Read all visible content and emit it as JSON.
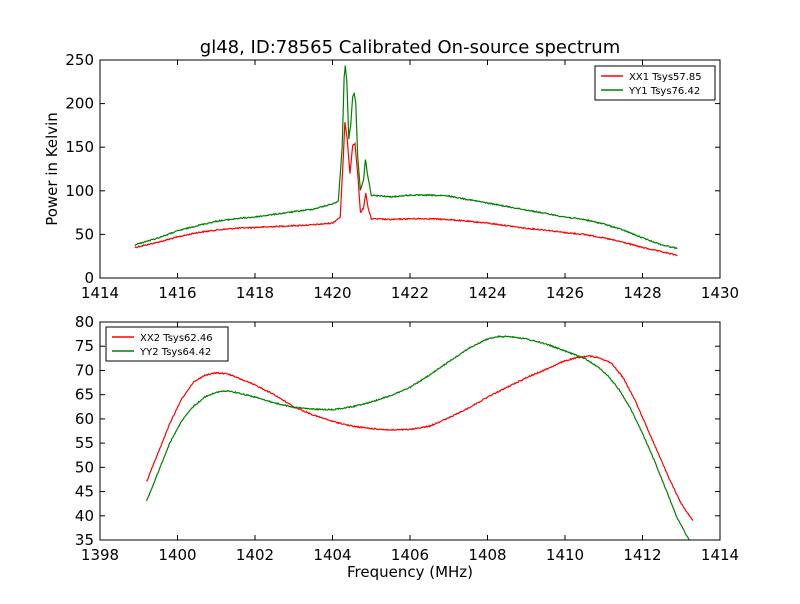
{
  "chart_data": [
    {
      "type": "line",
      "title": "gl48, ID:78565 Calibrated On-source spectrum",
      "xlabel": "",
      "ylabel": "Power in Kelvin",
      "xlim": [
        1414,
        1430
      ],
      "ylim": [
        0,
        250
      ],
      "xticks": [
        1414,
        1416,
        1418,
        1420,
        1422,
        1424,
        1426,
        1428,
        1430
      ],
      "yticks": [
        0,
        50,
        100,
        150,
        200,
        250
      ],
      "grid": false,
      "legend_position": "upper right",
      "series": [
        {
          "name": "XX1 Tsys57.85",
          "color": "#ff0000",
          "points": [
            [
              1414.9,
              35
            ],
            [
              1415.5,
              41
            ],
            [
              1416.0,
              47
            ],
            [
              1416.5,
              52
            ],
            [
              1417.0,
              55
            ],
            [
              1417.5,
              57
            ],
            [
              1418.0,
              58
            ],
            [
              1418.5,
              59
            ],
            [
              1419.0,
              60
            ],
            [
              1419.5,
              61
            ],
            [
              1420.0,
              63
            ],
            [
              1420.2,
              70
            ],
            [
              1420.28,
              140
            ],
            [
              1420.32,
              178
            ],
            [
              1420.38,
              160
            ],
            [
              1420.45,
              120
            ],
            [
              1420.52,
              152
            ],
            [
              1420.58,
              154
            ],
            [
              1420.65,
              120
            ],
            [
              1420.72,
              75
            ],
            [
              1420.8,
              80
            ],
            [
              1420.86,
              98
            ],
            [
              1420.92,
              80
            ],
            [
              1421.0,
              68
            ],
            [
              1421.5,
              67
            ],
            [
              1422.0,
              68
            ],
            [
              1422.5,
              68
            ],
            [
              1423.0,
              67
            ],
            [
              1423.5,
              65
            ],
            [
              1424.0,
              63
            ],
            [
              1424.5,
              60
            ],
            [
              1425.0,
              57
            ],
            [
              1425.5,
              55
            ],
            [
              1426.0,
              52
            ],
            [
              1426.5,
              50
            ],
            [
              1427.0,
              46
            ],
            [
              1427.5,
              41
            ],
            [
              1428.0,
              35
            ],
            [
              1428.5,
              30
            ],
            [
              1428.9,
              26
            ]
          ]
        },
        {
          "name": "YY1 Tsys76.42",
          "color": "#008000",
          "points": [
            [
              1414.9,
              38
            ],
            [
              1415.5,
              46
            ],
            [
              1416.0,
              54
            ],
            [
              1416.5,
              60
            ],
            [
              1417.0,
              65
            ],
            [
              1417.5,
              68
            ],
            [
              1418.0,
              70
            ],
            [
              1418.5,
              73
            ],
            [
              1419.0,
              76
            ],
            [
              1419.5,
              79
            ],
            [
              1420.0,
              85
            ],
            [
              1420.15,
              88
            ],
            [
              1420.25,
              150
            ],
            [
              1420.3,
              230
            ],
            [
              1420.33,
              244
            ],
            [
              1420.37,
              225
            ],
            [
              1420.42,
              160
            ],
            [
              1420.47,
              175
            ],
            [
              1420.52,
              208
            ],
            [
              1420.56,
              212
            ],
            [
              1420.6,
              200
            ],
            [
              1420.65,
              140
            ],
            [
              1420.72,
              100
            ],
            [
              1420.8,
              112
            ],
            [
              1420.85,
              136
            ],
            [
              1420.9,
              120
            ],
            [
              1421.0,
              95
            ],
            [
              1421.5,
              93
            ],
            [
              1422.0,
              95
            ],
            [
              1422.5,
              95
            ],
            [
              1423.0,
              94
            ],
            [
              1423.5,
              90
            ],
            [
              1424.0,
              86
            ],
            [
              1424.5,
              82
            ],
            [
              1425.0,
              78
            ],
            [
              1425.5,
              74
            ],
            [
              1426.0,
              70
            ],
            [
              1426.5,
              67
            ],
            [
              1427.0,
              62
            ],
            [
              1427.5,
              55
            ],
            [
              1428.0,
              46
            ],
            [
              1428.5,
              38
            ],
            [
              1428.9,
              34
            ]
          ]
        }
      ]
    },
    {
      "type": "line",
      "title": "",
      "xlabel": "Frequency (MHz)",
      "ylabel": "",
      "xlim": [
        1398,
        1414
      ],
      "ylim": [
        35,
        80
      ],
      "xticks": [
        1398,
        1400,
        1402,
        1404,
        1406,
        1408,
        1410,
        1412,
        1414
      ],
      "yticks": [
        35,
        40,
        45,
        50,
        55,
        60,
        65,
        70,
        75,
        80
      ],
      "grid": false,
      "legend_position": "upper left",
      "series": [
        {
          "name": "XX2 Tsys62.46",
          "color": "#ff0000",
          "points": [
            [
              1399.2,
              47
            ],
            [
              1399.5,
              53
            ],
            [
              1399.8,
              59
            ],
            [
              1400.1,
              64
            ],
            [
              1400.4,
              67.5
            ],
            [
              1400.7,
              69
            ],
            [
              1401.0,
              69.5
            ],
            [
              1401.3,
              69.3
            ],
            [
              1401.6,
              68.3
            ],
            [
              1402.0,
              67
            ],
            [
              1402.5,
              65
            ],
            [
              1403.0,
              62.5
            ],
            [
              1403.5,
              60.8
            ],
            [
              1404.0,
              59.5
            ],
            [
              1404.5,
              58.5
            ],
            [
              1405.0,
              58
            ],
            [
              1405.5,
              57.7
            ],
            [
              1406.0,
              57.8
            ],
            [
              1406.5,
              58.5
            ],
            [
              1407.0,
              60.2
            ],
            [
              1407.5,
              62.2
            ],
            [
              1408.0,
              64.5
            ],
            [
              1408.5,
              66.5
            ],
            [
              1409.0,
              68.5
            ],
            [
              1409.5,
              70.2
            ],
            [
              1410.0,
              72
            ],
            [
              1410.3,
              72.6
            ],
            [
              1410.6,
              73
            ],
            [
              1410.9,
              72.6
            ],
            [
              1411.2,
              71.5
            ],
            [
              1411.5,
              68.5
            ],
            [
              1411.8,
              64
            ],
            [
              1412.1,
              58.5
            ],
            [
              1412.4,
              53
            ],
            [
              1412.7,
              47.5
            ],
            [
              1413.0,
              42.5
            ],
            [
              1413.3,
              39
            ]
          ]
        },
        {
          "name": "YY2 Tsys64.42",
          "color": "#008000",
          "points": [
            [
              1399.2,
              43
            ],
            [
              1399.5,
              49
            ],
            [
              1399.8,
              55
            ],
            [
              1400.1,
              59.5
            ],
            [
              1400.4,
              62.5
            ],
            [
              1400.7,
              64.5
            ],
            [
              1401.0,
              65.5
            ],
            [
              1401.3,
              65.8
            ],
            [
              1401.6,
              65.3
            ],
            [
              1402.0,
              64.5
            ],
            [
              1402.5,
              63.3
            ],
            [
              1403.0,
              62.4
            ],
            [
              1403.5,
              62
            ],
            [
              1404.0,
              61.9
            ],
            [
              1404.5,
              62.5
            ],
            [
              1405.0,
              63.5
            ],
            [
              1405.5,
              64.8
            ],
            [
              1406.0,
              66.5
            ],
            [
              1406.5,
              69
            ],
            [
              1407.0,
              71.8
            ],
            [
              1407.5,
              74.5
            ],
            [
              1408.0,
              76.5
            ],
            [
              1408.3,
              77
            ],
            [
              1408.6,
              77
            ],
            [
              1409.0,
              76.5
            ],
            [
              1409.5,
              75.5
            ],
            [
              1410.0,
              74
            ],
            [
              1410.5,
              72.5
            ],
            [
              1410.8,
              71
            ],
            [
              1411.1,
              69
            ],
            [
              1411.4,
              66
            ],
            [
              1411.7,
              62
            ],
            [
              1412.0,
              57
            ],
            [
              1412.3,
              51.5
            ],
            [
              1412.6,
              45.5
            ],
            [
              1412.9,
              39.5
            ],
            [
              1413.2,
              35
            ]
          ]
        }
      ]
    }
  ]
}
